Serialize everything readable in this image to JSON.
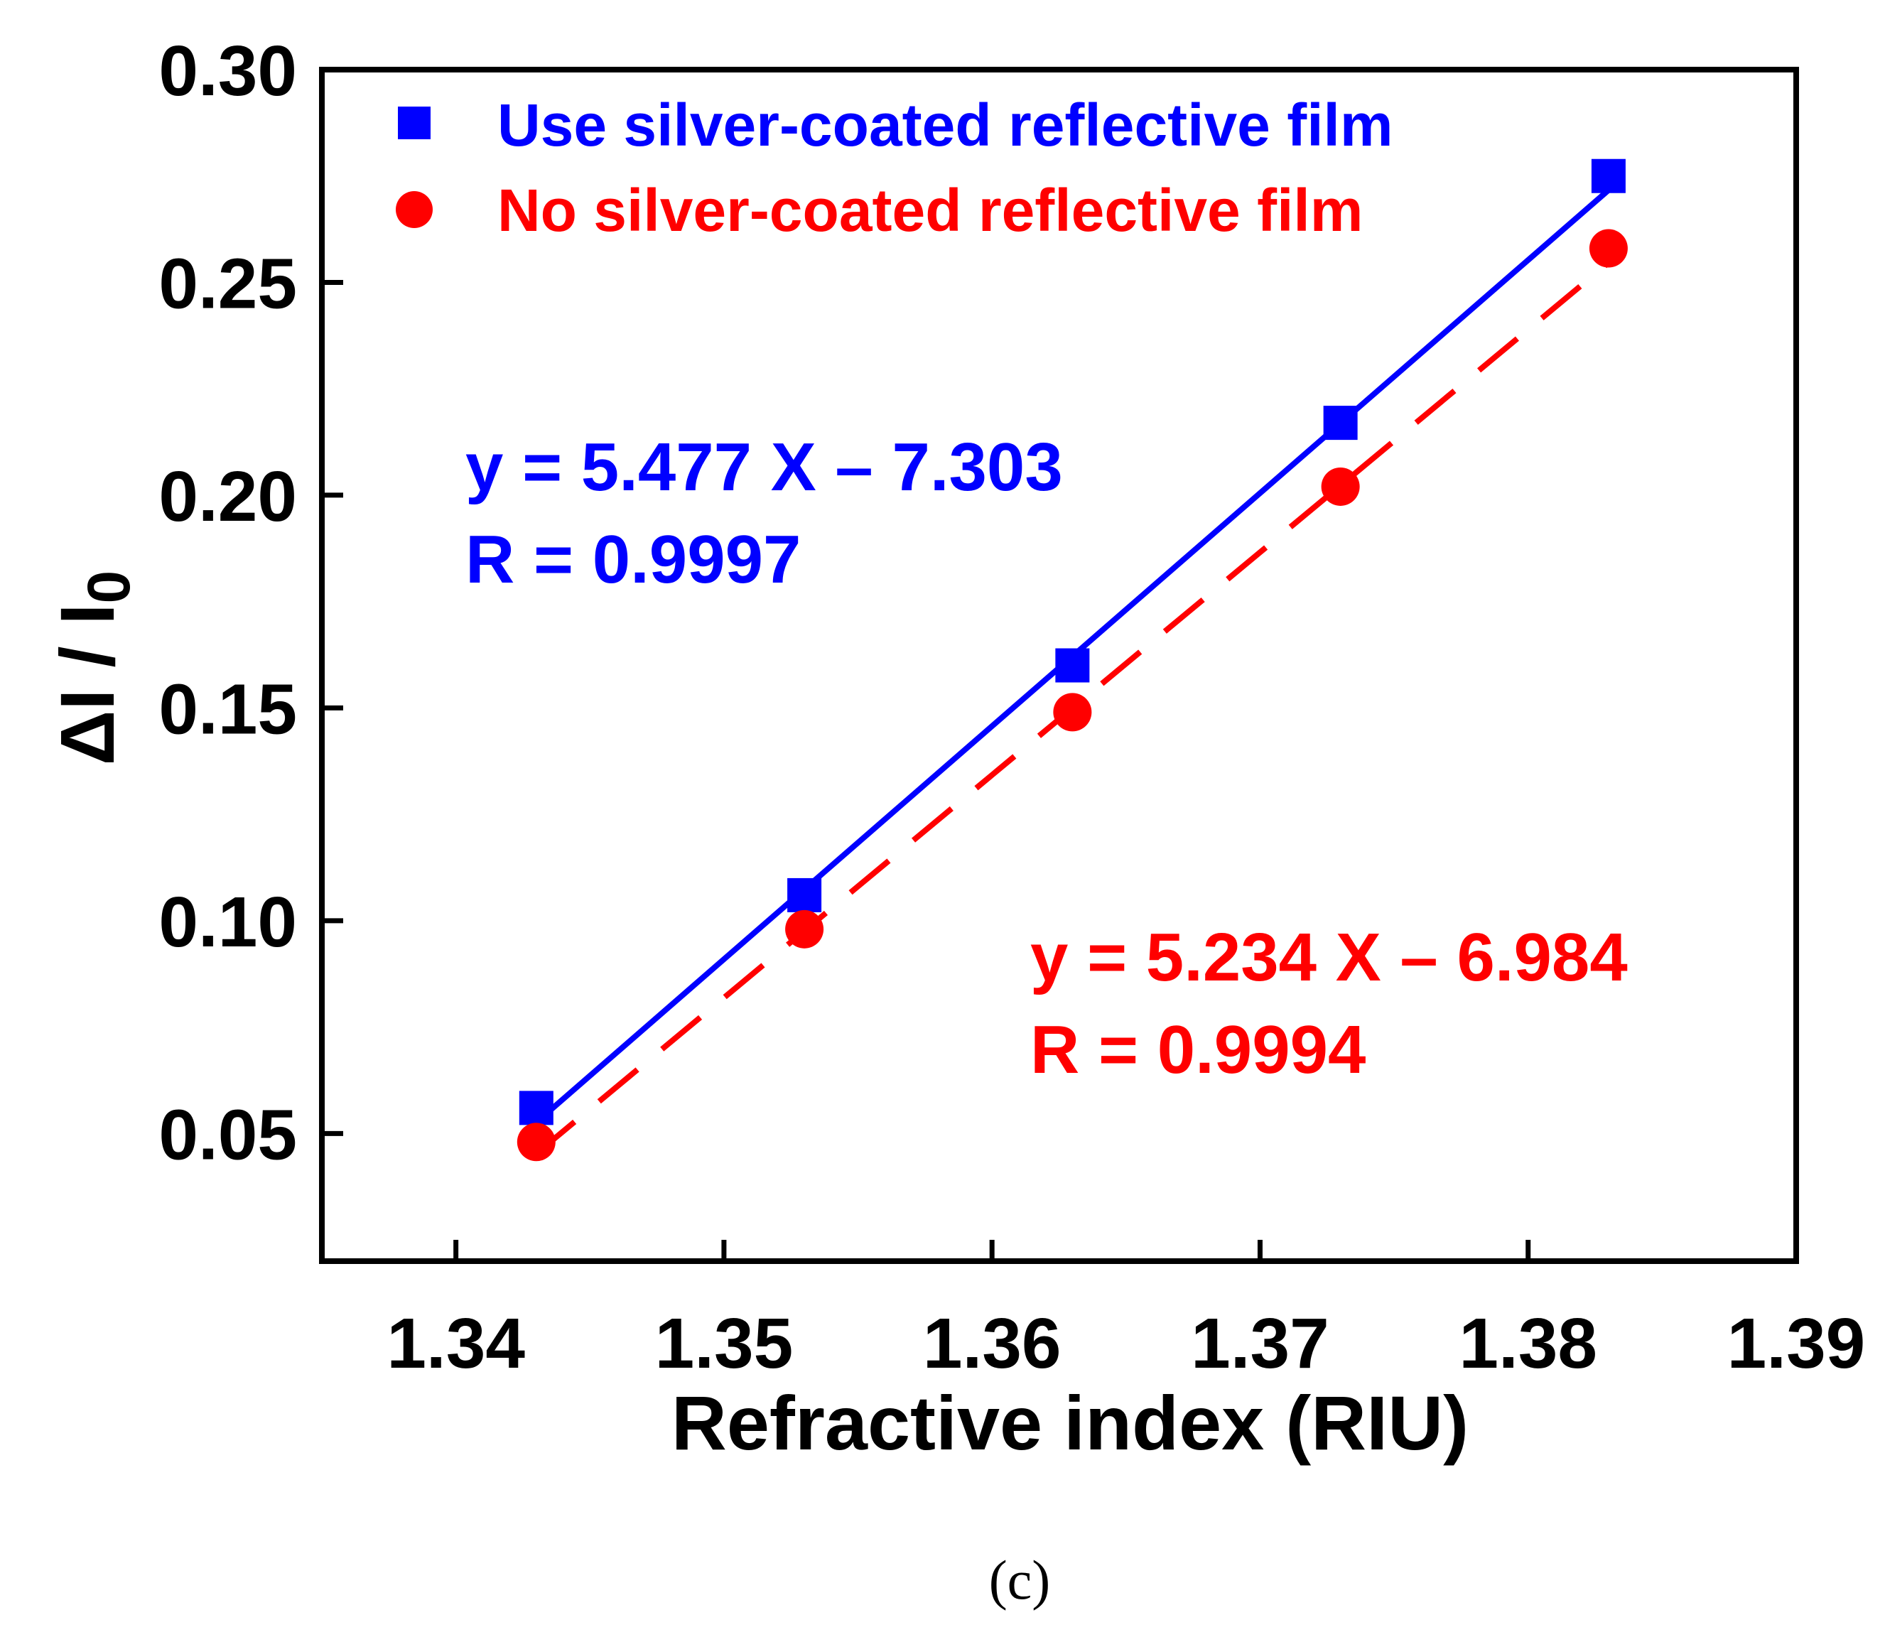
{
  "chart_data": {
    "type": "scatter",
    "xlabel": "Refractive index (RIU)",
    "ylabel": "ΔI / I",
    "ylabel_subscript": "0",
    "xlim": [
      1.335,
      1.39
    ],
    "ylim": [
      0.02,
      0.3
    ],
    "xticks": [
      "1.34",
      "1.35",
      "1.36",
      "1.37",
      "1.38",
      "1.39"
    ],
    "yticks": [
      "0.05",
      "0.10",
      "0.15",
      "0.20",
      "0.25",
      "0.30"
    ],
    "x": [
      1.343,
      1.353,
      1.363,
      1.373,
      1.383
    ],
    "series": [
      {
        "name": "Use silver-coated reflective film",
        "marker": "square",
        "color": "#0000ff",
        "line": "solid",
        "values": [
          0.056,
          0.106,
          0.16,
          0.217,
          0.275
        ],
        "fit": {
          "slope": 5.477,
          "intercept": -7.303
        },
        "equation": "y = 5.477 X – 7.303",
        "r_label": "R = 0.9997"
      },
      {
        "name": "No silver-coated reflective film",
        "marker": "circle",
        "color": "#ff0000",
        "line": "dashed",
        "values": [
          0.048,
          0.098,
          0.149,
          0.202,
          0.258
        ],
        "fit": {
          "slope": 5.234,
          "intercept": -6.984
        },
        "equation": "y = 5.234 X – 6.984",
        "r_label": "R = 0.9994"
      }
    ],
    "legend_position": "top-left",
    "grid": false
  },
  "caption": "(c)"
}
